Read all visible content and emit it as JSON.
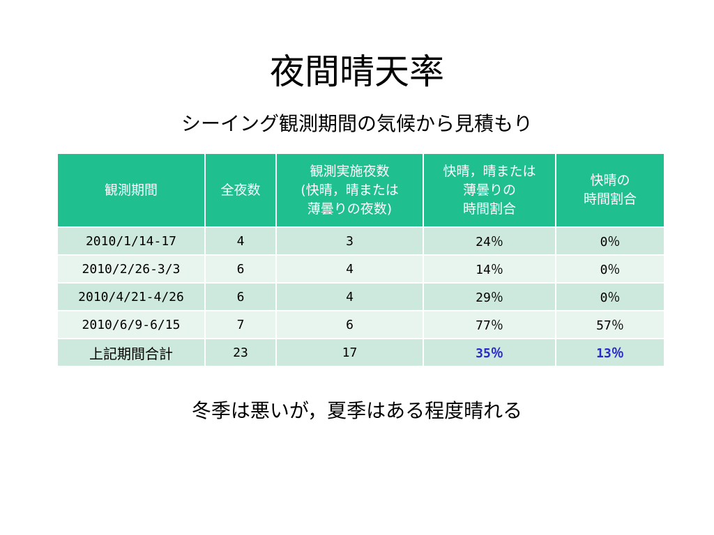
{
  "title": "夜間晴天率",
  "subtitle": "シーイング観測期間の気候から見積もり",
  "table": {
    "headers": [
      [
        "観測期間"
      ],
      [
        "全夜数"
      ],
      [
        "観測実施夜数",
        "(快晴，晴または",
        "薄曇りの夜数)"
      ],
      [
        "快晴，晴または",
        "薄曇りの",
        "時間割合"
      ],
      [
        "快晴の",
        "時間割合"
      ]
    ],
    "rows": [
      [
        "2010/1/14-17",
        "4",
        "3",
        "24％",
        "0％"
      ],
      [
        "2010/2/26-3/3",
        "6",
        "4",
        "14％",
        "0％"
      ],
      [
        "2010/4/21-4/26",
        "6",
        "4",
        "29％",
        "0％"
      ],
      [
        "2010/6/9-6/15",
        "7",
        "6",
        "77％",
        "57％"
      ],
      [
        "上記期間合計",
        "23",
        "17",
        "35％",
        "13％"
      ]
    ]
  },
  "note": "冬季は悪いが，夏季はある程度晴れる",
  "colors": {
    "header_bg": "#1fbf8f",
    "row_dark": "#cde9dd",
    "row_light": "#e8f4ee",
    "highlight_text": "#2929c9"
  }
}
